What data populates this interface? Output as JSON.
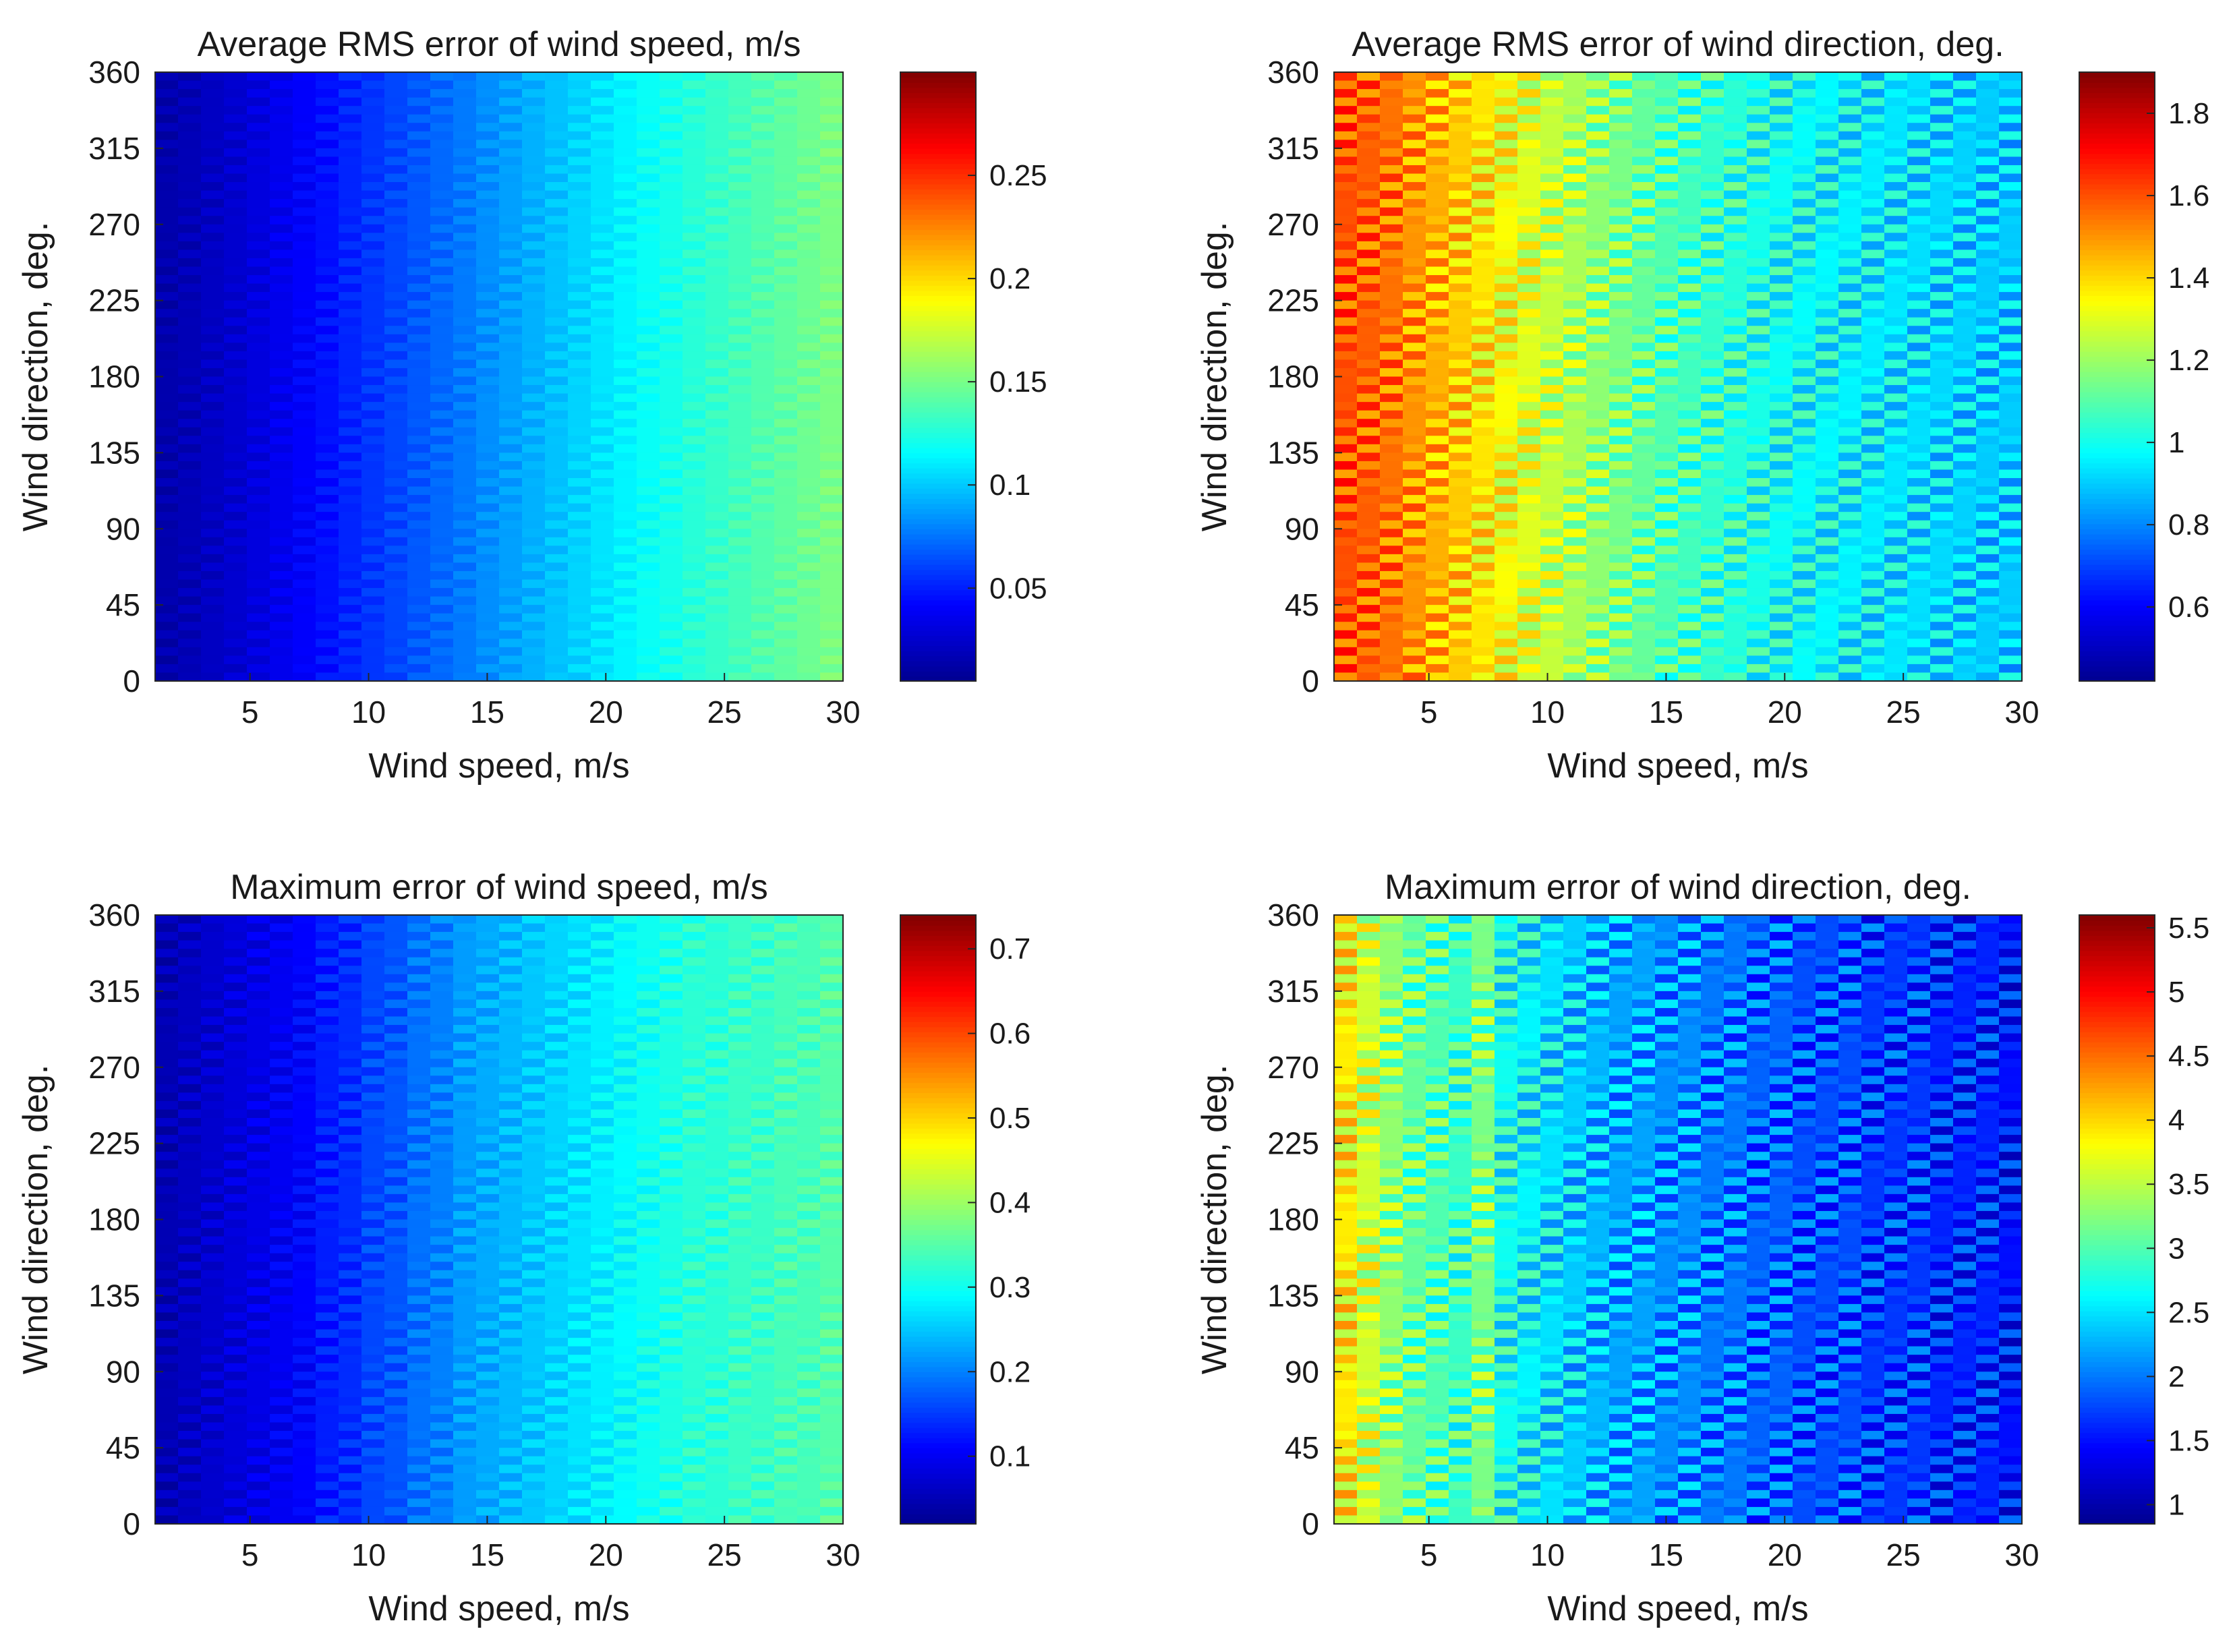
{
  "colormap": {
    "name": "jet",
    "stops": [
      "#00008f",
      "#0000ff",
      "#0080ff",
      "#00ffff",
      "#80ff80",
      "#ffff00",
      "#ff8000",
      "#ff0000",
      "#800000"
    ]
  },
  "chart_data": [
    {
      "type": "heatmap",
      "title": "Average RMS error of wind speed, m/s",
      "xlabel": "Wind speed, m/s",
      "ylabel": "Wind direction, deg.",
      "xlim": [
        1,
        30
      ],
      "ylim": [
        0,
        360
      ],
      "xticks": [
        5,
        10,
        15,
        20,
        25,
        30
      ],
      "yticks": [
        0,
        45,
        90,
        135,
        180,
        225,
        270,
        315,
        360
      ],
      "clim": [
        0.005,
        0.3
      ],
      "colorbar_ticks": [
        0.05,
        0.1,
        0.15,
        0.2,
        0.25
      ],
      "stripe_amplitude": 0.005,
      "x": [
        1,
        2,
        3,
        4,
        5,
        6,
        7,
        8,
        9,
        10,
        11,
        12,
        13,
        14,
        15,
        16,
        17,
        18,
        19,
        20,
        21,
        22,
        23,
        24,
        25,
        26,
        27,
        28,
        29,
        30
      ],
      "values": [
        0.015,
        0.018,
        0.022,
        0.026,
        0.031,
        0.036,
        0.041,
        0.046,
        0.052,
        0.057,
        0.062,
        0.067,
        0.072,
        0.077,
        0.083,
        0.088,
        0.093,
        0.098,
        0.103,
        0.108,
        0.113,
        0.118,
        0.122,
        0.127,
        0.131,
        0.135,
        0.139,
        0.143,
        0.147,
        0.151
      ]
    },
    {
      "type": "heatmap",
      "title": "Average RMS error of wind direction, deg.",
      "xlabel": "Wind speed, m/s",
      "ylabel": "Wind direction, deg.",
      "xlim": [
        1,
        30
      ],
      "ylim": [
        0,
        360
      ],
      "xticks": [
        5,
        10,
        15,
        20,
        25,
        30
      ],
      "yticks": [
        0,
        45,
        90,
        135,
        180,
        225,
        270,
        315,
        360
      ],
      "clim": [
        0.42,
        1.9
      ],
      "colorbar_ticks": [
        0.6,
        0.8,
        1,
        1.2,
        1.4,
        1.6,
        1.8
      ],
      "stripe_amplitude": 0.12,
      "x": [
        1,
        2,
        3,
        4,
        5,
        6,
        7,
        8,
        9,
        10,
        11,
        12,
        13,
        14,
        15,
        16,
        17,
        18,
        19,
        20,
        21,
        22,
        23,
        24,
        25,
        26,
        27,
        28,
        29,
        30
      ],
      "values": [
        1.6,
        1.58,
        1.55,
        1.5,
        1.46,
        1.42,
        1.38,
        1.34,
        1.3,
        1.26,
        1.22,
        1.18,
        1.15,
        1.12,
        1.09,
        1.07,
        1.05,
        1.03,
        1.01,
        0.99,
        0.98,
        0.97,
        0.96,
        0.95,
        0.94,
        0.93,
        0.92,
        0.91,
        0.9,
        0.9
      ]
    },
    {
      "type": "heatmap",
      "title": "Maximum error of wind speed, m/s",
      "xlabel": "Wind speed, m/s",
      "ylabel": "Wind direction, deg.",
      "xlim": [
        1,
        30
      ],
      "ylim": [
        0,
        360
      ],
      "xticks": [
        5,
        10,
        15,
        20,
        25,
        30
      ],
      "yticks": [
        0,
        45,
        90,
        135,
        180,
        225,
        270,
        315,
        360
      ],
      "clim": [
        0.02,
        0.74
      ],
      "colorbar_ticks": [
        0.1,
        0.2,
        0.3,
        0.4,
        0.5,
        0.6,
        0.7
      ],
      "stripe_amplitude": 0.02,
      "x": [
        1,
        2,
        3,
        4,
        5,
        6,
        7,
        8,
        9,
        10,
        11,
        12,
        13,
        14,
        15,
        16,
        17,
        18,
        19,
        20,
        21,
        22,
        23,
        24,
        25,
        26,
        27,
        28,
        29,
        30
      ],
      "values": [
        0.05,
        0.06,
        0.07,
        0.08,
        0.09,
        0.1,
        0.11,
        0.13,
        0.14,
        0.16,
        0.17,
        0.19,
        0.2,
        0.22,
        0.23,
        0.24,
        0.25,
        0.26,
        0.27,
        0.28,
        0.29,
        0.3,
        0.31,
        0.32,
        0.32,
        0.33,
        0.33,
        0.34,
        0.34,
        0.35
      ]
    },
    {
      "type": "heatmap",
      "title": "Maximum error of wind direction, deg.",
      "xlabel": "Wind speed, m/s",
      "ylabel": "Wind direction, deg.",
      "xlim": [
        1,
        30
      ],
      "ylim": [
        0,
        360
      ],
      "xticks": [
        5,
        10,
        15,
        20,
        25,
        30
      ],
      "yticks": [
        0,
        45,
        90,
        135,
        180,
        225,
        270,
        315,
        360
      ],
      "clim": [
        0.85,
        5.6
      ],
      "colorbar_ticks": [
        1,
        1.5,
        2,
        2.5,
        3,
        3.5,
        4,
        4.5,
        5,
        5.5
      ],
      "stripe_amplitude": 0.45,
      "x": [
        1,
        2,
        3,
        4,
        5,
        6,
        7,
        8,
        9,
        10,
        11,
        12,
        13,
        14,
        15,
        16,
        17,
        18,
        19,
        20,
        21,
        22,
        23,
        24,
        25,
        26,
        27,
        28,
        29,
        30
      ],
      "values": [
        3.9,
        3.6,
        3.3,
        3.1,
        3.0,
        2.9,
        3.2,
        2.7,
        2.6,
        2.5,
        2.4,
        2.3,
        2.2,
        2.2,
        2.1,
        2.1,
        2.0,
        2.0,
        1.9,
        1.9,
        1.8,
        1.8,
        1.8,
        1.7,
        1.7,
        1.7,
        1.6,
        1.6,
        1.6,
        1.5
      ]
    }
  ]
}
